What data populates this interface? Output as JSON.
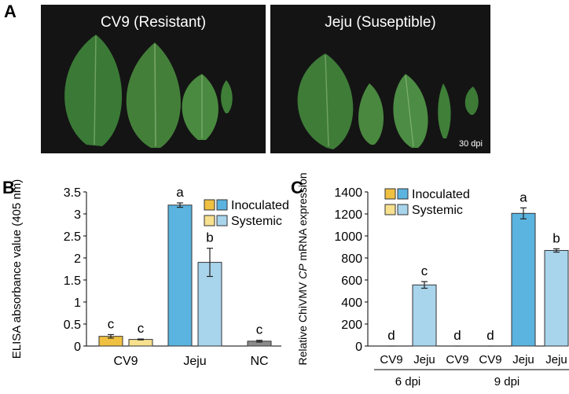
{
  "panel_a": {
    "letter": "A",
    "left_photo_title": "CV9 (Resistant)",
    "right_photo_title": "Jeju (Suseptible)",
    "dpi_label": "30 dpi"
  },
  "panel_b": {
    "letter": "B"
  },
  "panel_c": {
    "letter": "C"
  },
  "colors": {
    "cv9_inoculated": "#f0c040",
    "cv9_systemic": "#f7e08e",
    "jeju_inoculated": "#5bb3e0",
    "jeju_systemic": "#a8d4ec",
    "nc": "#8c8c8c",
    "leaf": "#3d7a38",
    "photo_bg": "#141414"
  },
  "chart_data": [
    {
      "type": "bar",
      "ylabel": "ELISA absorbance value (405 nm)",
      "ylim": [
        0,
        3.5
      ],
      "yticks": [
        "0",
        "0.5",
        "1",
        "1.5",
        "2",
        "2.5",
        "3",
        "3.5"
      ],
      "categories": [
        "CV9",
        "Jeju",
        "NC"
      ],
      "legend": [
        "Inoculated",
        "Systemic"
      ],
      "legend_position": "top-right",
      "bars": [
        {
          "group": "CV9",
          "kind": "inoculated",
          "value": 0.22,
          "error": 0.04,
          "letter": "c"
        },
        {
          "group": "CV9",
          "kind": "systemic",
          "value": 0.15,
          "error": 0.01,
          "letter": "c"
        },
        {
          "group": "Jeju",
          "kind": "inoculated",
          "value": 3.2,
          "error": 0.05,
          "letter": "a"
        },
        {
          "group": "Jeju",
          "kind": "systemic",
          "value": 1.9,
          "error": 0.32,
          "letter": "b"
        },
        {
          "group": "NC",
          "kind": "nc",
          "value": 0.11,
          "error": 0.02,
          "letter": "c"
        }
      ]
    },
    {
      "type": "bar",
      "ylabel_parts": [
        "Relative ChiVMV ",
        "CP",
        " mRNA expression"
      ],
      "ylim": [
        0,
        1400
      ],
      "yticks": [
        "0",
        "200",
        "400",
        "600",
        "800",
        "1000",
        "1200",
        "1400"
      ],
      "legend": [
        "Inoculated",
        "Systemic"
      ],
      "legend_position": "top-left",
      "groups": [
        "6 dpi",
        "9 dpi"
      ],
      "bars": [
        {
          "label": "CV9",
          "group": "6 dpi",
          "kind": "cv9_systemic",
          "value": 0,
          "error": 0,
          "letter": "d"
        },
        {
          "label": "Jeju",
          "group": "6 dpi",
          "kind": "jeju_systemic",
          "value": 555,
          "error": 30,
          "letter": "c"
        },
        {
          "label": "CV9",
          "group": "9 dpi",
          "kind": "cv9_inoculated",
          "value": 0,
          "error": 0,
          "letter": "d"
        },
        {
          "label": "CV9",
          "group": "9 dpi",
          "kind": "cv9_systemic",
          "value": 0,
          "error": 0,
          "letter": "d"
        },
        {
          "label": "Jeju",
          "group": "9 dpi",
          "kind": "jeju_inoculated",
          "value": 1205,
          "error": 50,
          "letter": "a"
        },
        {
          "label": "Jeju",
          "group": "9 dpi",
          "kind": "jeju_systemic",
          "value": 868,
          "error": 15,
          "letter": "b"
        }
      ]
    }
  ]
}
